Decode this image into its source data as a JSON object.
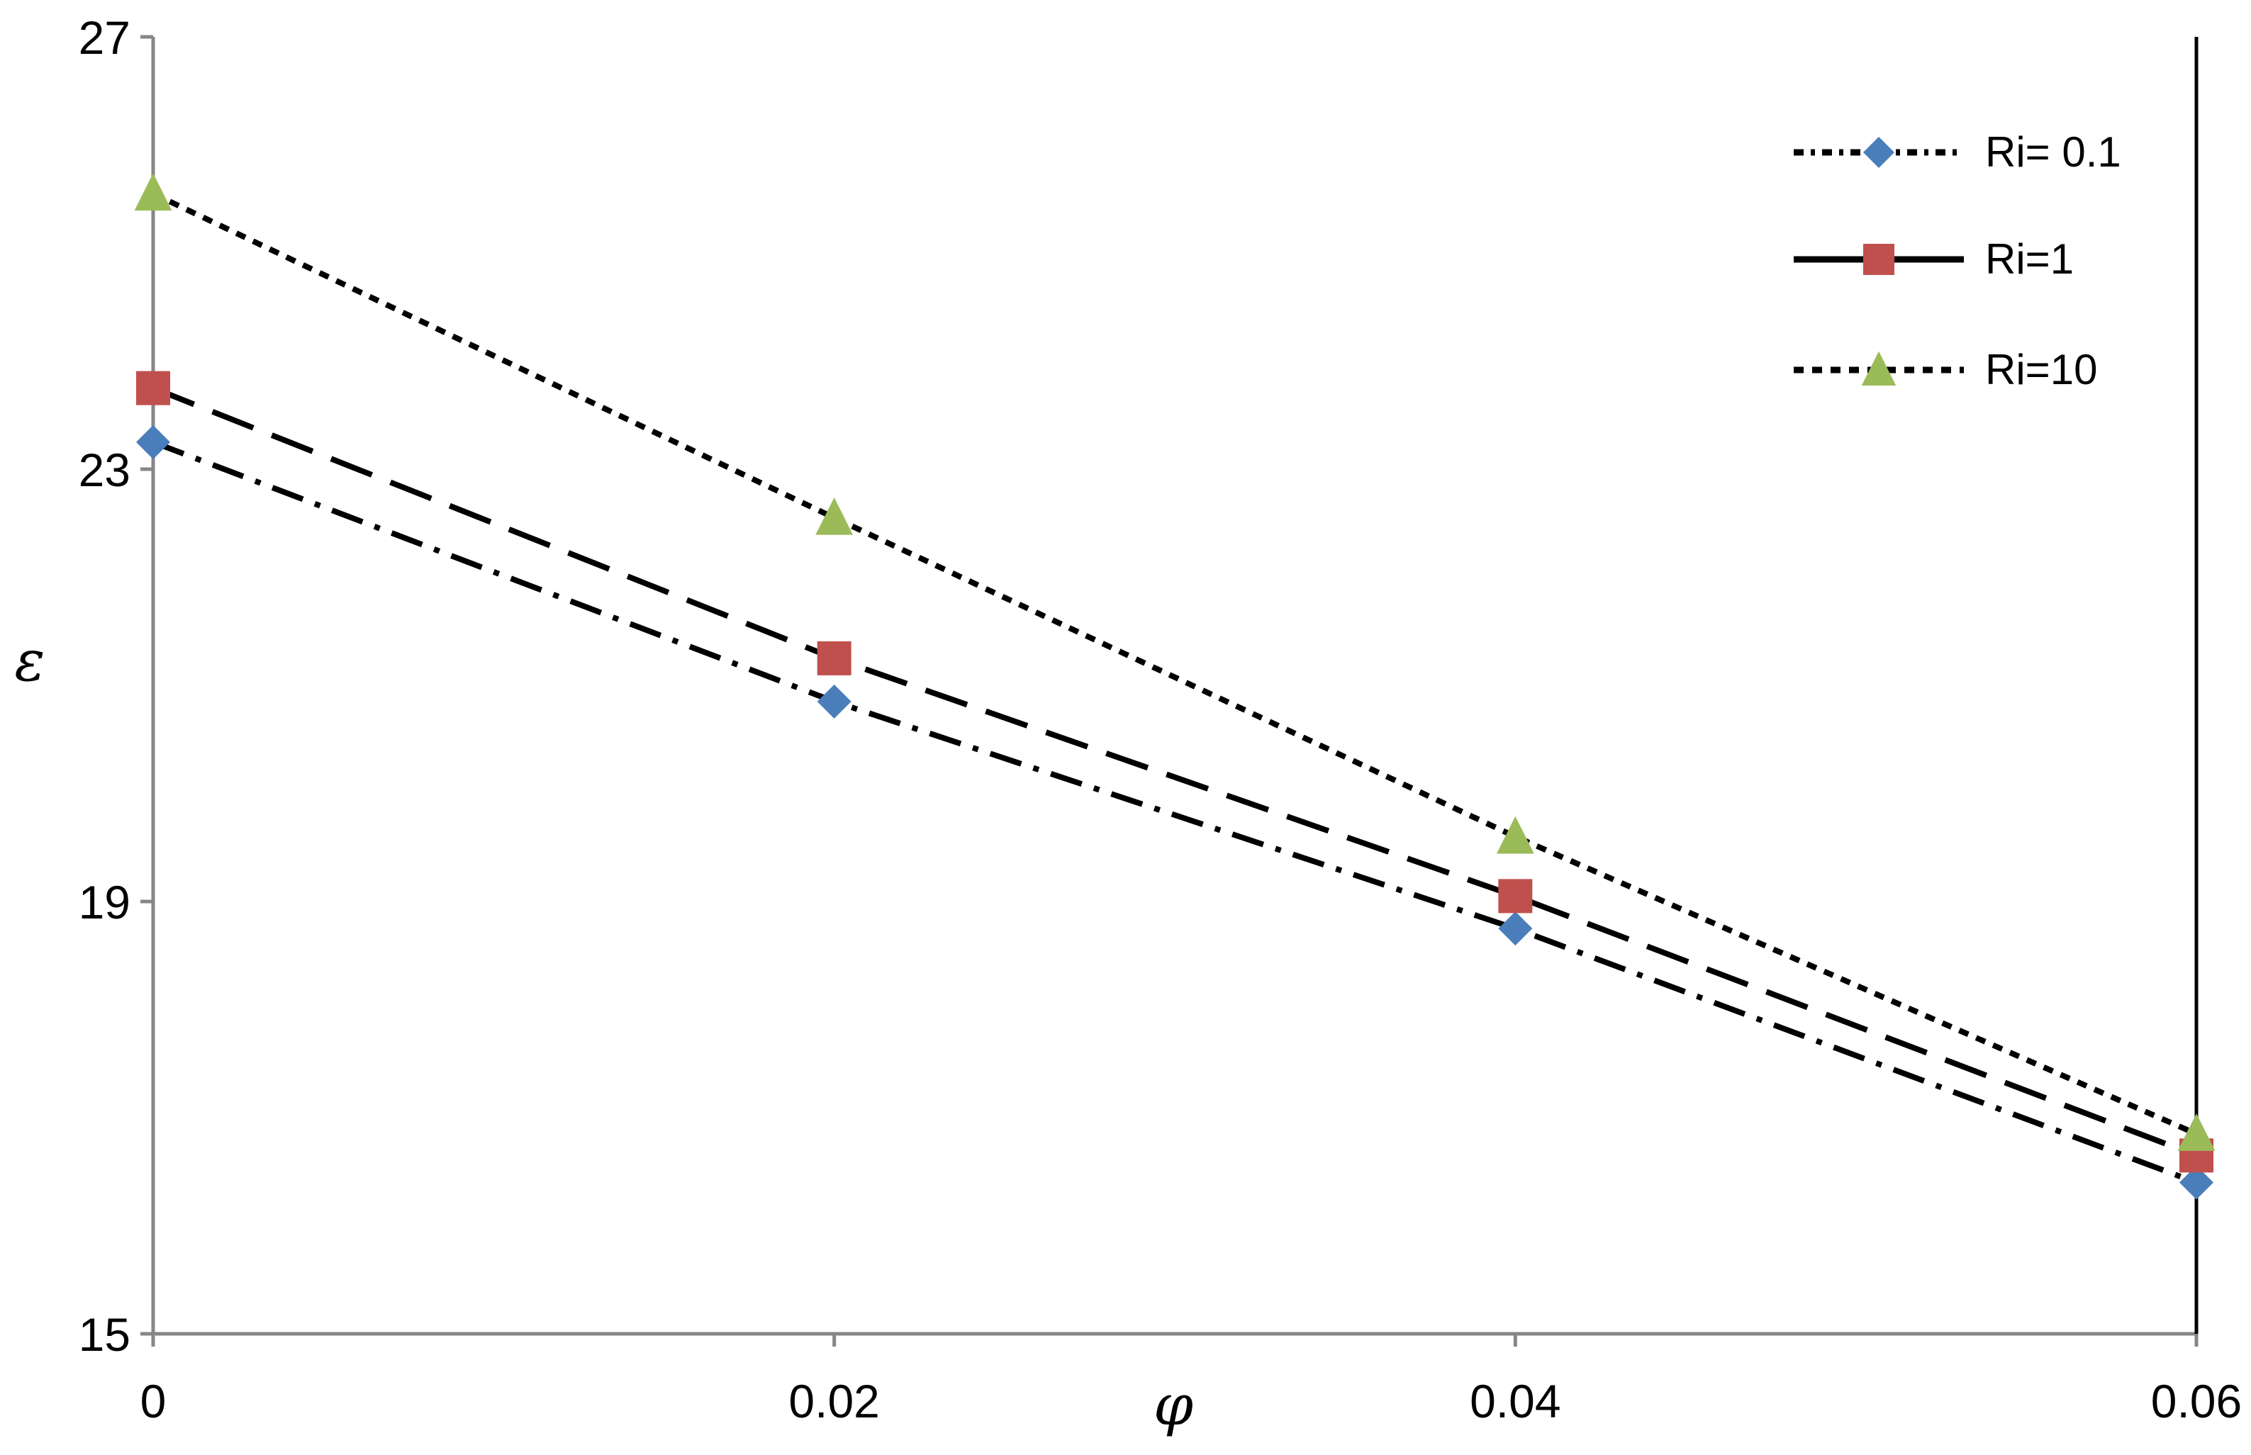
{
  "chart_data": {
    "type": "line",
    "xlabel": "φ",
    "ylabel": "ε",
    "x": [
      0,
      0.02,
      0.04,
      0.06
    ],
    "x_ticks": [
      "0",
      "0.02",
      "0.04",
      "0.06"
    ],
    "y_ticks": [
      "15",
      "19",
      "23",
      "27"
    ],
    "xlim": [
      0,
      0.06
    ],
    "ylim": [
      15,
      27
    ],
    "grid": false,
    "legend_position": "top-right",
    "series": [
      {
        "name": "Ri= 0.1",
        "values": [
          23.25,
          20.85,
          18.75,
          16.4
        ],
        "marker": "diamond",
        "color": "#4a7ebb"
      },
      {
        "name": "Ri=1",
        "values": [
          23.75,
          21.25,
          19.05,
          16.65
        ],
        "marker": "square",
        "color": "#c0504d"
      },
      {
        "name": "Ri=10",
        "values": [
          25.55,
          22.55,
          19.6,
          16.85
        ],
        "marker": "triangle",
        "color": "#9bbb59"
      }
    ]
  }
}
